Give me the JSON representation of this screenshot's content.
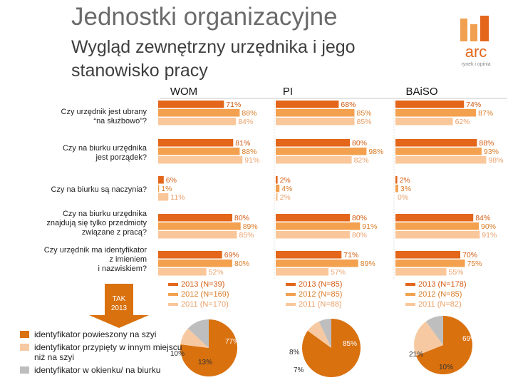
{
  "header": {
    "title": "Jednostki organizacyjne",
    "subtitle": "Wygląd zewnętrzny urzędnika i jego stanowisko pracy",
    "logo_text": "arc",
    "logo_subtext": "rynek i opinia"
  },
  "colors": {
    "c2013": "#e3661a",
    "c2012": "#f3a04f",
    "c2011": "#f9c79a",
    "pie_slice1": "#d9710f",
    "pie_slice2": "#f6c9a2",
    "pie_slice3": "#bebebe",
    "label2013": "#d35b12",
    "label2012": "#d97c27",
    "label2011": "#e9a06a"
  },
  "chart_data": {
    "type": "bar",
    "orientation": "horizontal",
    "groups": [
      "WOM",
      "PI",
      "BAiSO"
    ],
    "questions": [
      "Czy urzędnik jest ubrany “na służbowo”?",
      "Czy na biurku urzędnika jest porządek?",
      "Czy na biurku są naczynia?",
      "Czy na biurku urzędnika znajdują się tylko przedmioty związane z pracą?",
      "Czy urzędnik ma identyfikator z imieniem i nazwiskiem?"
    ],
    "question_lines": [
      [
        "Czy urzędnik jest ubrany",
        "“na służbowo”?"
      ],
      [
        "Czy na biurku urzędnika",
        "jest porządek?"
      ],
      [
        "Czy na biurku są naczynia?"
      ],
      [
        "Czy na biurku urzędnika",
        "znajdują się tylko przedmioty",
        "związane z pracą?"
      ],
      [
        "Czy urzędnik ma identyfikator",
        "z imieniem",
        "i nazwiskiem?"
      ]
    ],
    "series_names": [
      "2013",
      "2012",
      "2011"
    ],
    "unit": "%",
    "values": {
      "WOM": [
        [
          71,
          88,
          84
        ],
        [
          81,
          88,
          91
        ],
        [
          6,
          1,
          11
        ],
        [
          80,
          89,
          85
        ],
        [
          69,
          80,
          52
        ]
      ],
      "PI": [
        [
          68,
          85,
          85
        ],
        [
          80,
          98,
          82
        ],
        [
          2,
          4,
          2
        ],
        [
          80,
          91,
          80
        ],
        [
          71,
          89,
          57
        ]
      ],
      "BAiSO": [
        [
          74,
          87,
          62
        ],
        [
          88,
          93,
          98
        ],
        [
          2,
          3,
          0
        ],
        [
          84,
          90,
          91
        ],
        [
          70,
          75,
          55
        ]
      ]
    },
    "legends": {
      "WOM": [
        "2013 (N=39)",
        "2012 (N=169)",
        "2011 (N=170)"
      ],
      "PI": [
        "2013 (N=85)",
        "2012 (N=85)",
        "2011 (N=88)"
      ],
      "BAiSO": [
        "2013 (N=178)",
        "2012 (N=85)",
        "2011 (N=82)"
      ]
    },
    "tak_label": [
      "TAK",
      "2013"
    ]
  },
  "pie_charts": {
    "legend": [
      "identyfikator powieszony na szyi",
      "identyfikator przypięty w innym miejscu niż na szyi",
      "identyfikator w okienku/ na biurku"
    ],
    "WOM": {
      "values": [
        77,
        10,
        13
      ],
      "labels": [
        "77%",
        "10%",
        "13%"
      ]
    },
    "PI": {
      "values": [
        85,
        8,
        7
      ],
      "labels": [
        "85%",
        "8%",
        "7%"
      ]
    },
    "BAiSO": {
      "values": [
        69,
        21,
        10
      ],
      "labels": [
        "69%",
        "21%",
        "10%"
      ]
    }
  }
}
